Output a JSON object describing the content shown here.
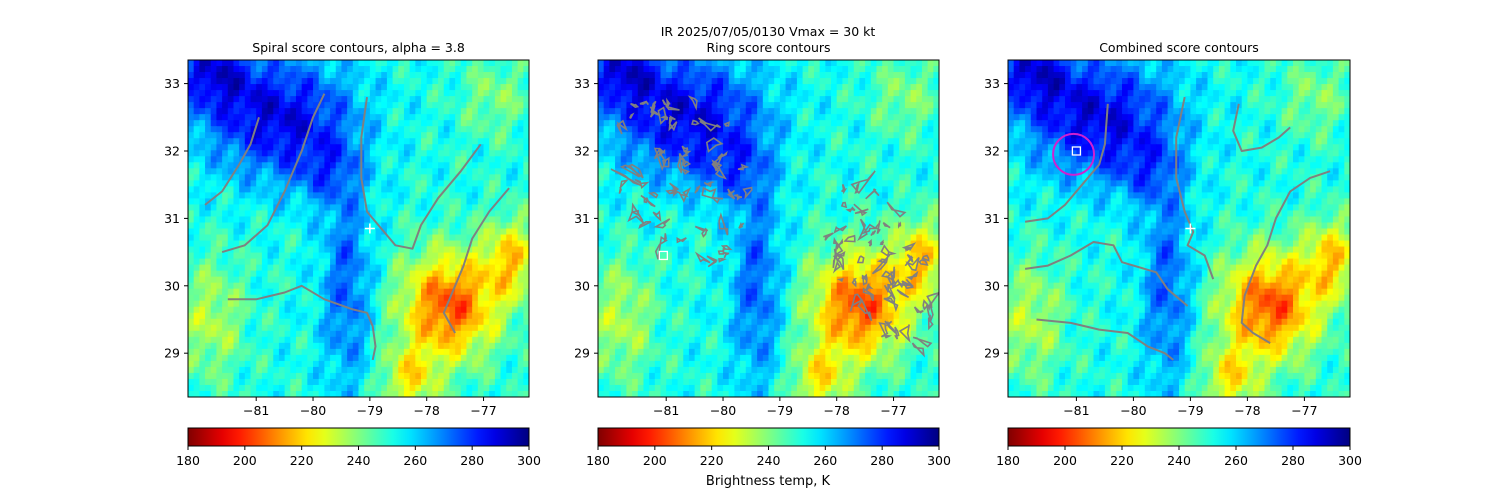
{
  "suptitle_line1": "IR  2025/07/05/0130    Vmax = 30 kt",
  "colorbar_label": "Brightness temp, K",
  "chart_data": [
    {
      "type": "heatmap",
      "title": "Spiral score contours, alpha =  3.8",
      "xlim": [
        -82.2,
        -76.2
      ],
      "ylim": [
        28.35,
        33.35
      ],
      "xticks": [
        -81,
        -80,
        -79,
        -78,
        -77
      ],
      "yticks": [
        29,
        30,
        31,
        32,
        33
      ],
      "overlay": "spiral",
      "contour_color": "#808080",
      "marker": {
        "type": "plus",
        "x": -79.0,
        "y": 30.85,
        "color": "#ffffff"
      },
      "contours": [
        [
          [
            -81.9,
            31.2
          ],
          [
            -81.6,
            31.4
          ],
          [
            -81.3,
            31.8
          ],
          [
            -81.1,
            32.1
          ],
          [
            -80.95,
            32.5
          ]
        ],
        [
          [
            -81.6,
            30.5
          ],
          [
            -81.2,
            30.6
          ],
          [
            -80.8,
            30.9
          ],
          [
            -80.5,
            31.4
          ],
          [
            -80.2,
            32.0
          ],
          [
            -80.0,
            32.5
          ],
          [
            -79.8,
            32.85
          ]
        ],
        [
          [
            -81.5,
            29.8
          ],
          [
            -81.0,
            29.8
          ],
          [
            -80.5,
            29.9
          ],
          [
            -80.2,
            30.0
          ],
          [
            -79.8,
            29.8
          ],
          [
            -79.3,
            29.65
          ],
          [
            -79.05,
            29.6
          ],
          [
            -78.95,
            29.4
          ],
          [
            -78.9,
            29.1
          ],
          [
            -78.95,
            28.9
          ]
        ],
        [
          [
            -79.05,
            32.8
          ],
          [
            -79.15,
            32.2
          ],
          [
            -79.15,
            31.6
          ],
          [
            -79.05,
            31.1
          ],
          [
            -78.75,
            30.8
          ],
          [
            -78.55,
            30.6
          ],
          [
            -78.25,
            30.55
          ],
          [
            -78.1,
            30.9
          ],
          [
            -77.8,
            31.3
          ],
          [
            -77.4,
            31.7
          ],
          [
            -77.05,
            32.1
          ]
        ],
        [
          [
            -76.55,
            31.45
          ],
          [
            -76.9,
            31.1
          ],
          [
            -77.2,
            30.7
          ],
          [
            -77.35,
            30.3
          ],
          [
            -77.55,
            29.9
          ],
          [
            -77.7,
            29.6
          ],
          [
            -77.5,
            29.3
          ]
        ]
      ]
    },
    {
      "type": "heatmap",
      "title": "Ring score contours",
      "xlim": [
        -82.2,
        -76.2
      ],
      "ylim": [
        28.35,
        33.35
      ],
      "xticks": [
        -81,
        -80,
        -79,
        -78,
        -77
      ],
      "yticks": [
        29,
        30,
        31,
        32,
        33
      ],
      "overlay": "ring",
      "contour_color": "#808080",
      "marker": {
        "type": "square",
        "x": -81.05,
        "y": 30.45,
        "color": "#ffffff"
      },
      "ring_regions": [
        {
          "cx": -80.6,
          "cy": 31.6,
          "rx": 1.15,
          "ry": 1.35,
          "rot": -25
        },
        {
          "cx": -77.2,
          "cy": 30.3,
          "rx": 0.75,
          "ry": 1.25,
          "rot": -25
        }
      ]
    },
    {
      "type": "heatmap",
      "title": "Combined score contours",
      "xlim": [
        -82.2,
        -76.2
      ],
      "ylim": [
        28.35,
        33.35
      ],
      "xticks": [
        -81,
        -80,
        -79,
        -78,
        -77
      ],
      "yticks": [
        29,
        30,
        31,
        32,
        33
      ],
      "overlay": "combined",
      "contour_color": "#808080",
      "marker": {
        "type": "plus",
        "x": -79.0,
        "y": 30.85,
        "color": "#ffffff"
      },
      "circle": {
        "x": -81.05,
        "y": 31.95,
        "r_deg": 0.36,
        "color": "#d020d0"
      },
      "square": {
        "x": -81.0,
        "y": 32.0,
        "color": "#ffffff"
      },
      "contours": [
        [
          [
            -81.9,
            30.95
          ],
          [
            -81.5,
            31.0
          ],
          [
            -81.2,
            31.2
          ],
          [
            -80.9,
            31.5
          ],
          [
            -80.6,
            31.8
          ],
          [
            -80.5,
            32.1
          ],
          [
            -80.45,
            32.7
          ]
        ],
        [
          [
            -81.9,
            30.25
          ],
          [
            -81.5,
            30.3
          ],
          [
            -81.1,
            30.45
          ],
          [
            -80.7,
            30.65
          ],
          [
            -80.35,
            30.6
          ],
          [
            -80.2,
            30.35
          ],
          [
            -79.8,
            30.25
          ],
          [
            -79.6,
            30.2
          ],
          [
            -79.4,
            29.95
          ],
          [
            -79.05,
            29.7
          ]
        ],
        [
          [
            -81.7,
            29.5
          ],
          [
            -81.1,
            29.45
          ],
          [
            -80.6,
            29.35
          ],
          [
            -80.1,
            29.3
          ],
          [
            -79.75,
            29.1
          ],
          [
            -79.45,
            29.0
          ],
          [
            -79.3,
            28.9
          ]
        ],
        [
          [
            -79.1,
            32.8
          ],
          [
            -79.25,
            32.2
          ],
          [
            -79.25,
            31.6
          ],
          [
            -79.1,
            31.1
          ],
          [
            -78.95,
            30.8
          ],
          [
            -79.05,
            30.6
          ],
          [
            -78.75,
            30.45
          ],
          [
            -78.6,
            30.1
          ]
        ],
        [
          [
            -78.15,
            32.7
          ],
          [
            -78.25,
            32.3
          ],
          [
            -78.1,
            32.0
          ],
          [
            -77.75,
            32.05
          ],
          [
            -77.45,
            32.2
          ],
          [
            -77.25,
            32.35
          ]
        ],
        [
          [
            -76.55,
            31.7
          ],
          [
            -76.9,
            31.6
          ],
          [
            -77.25,
            31.4
          ],
          [
            -77.5,
            31.0
          ],
          [
            -77.65,
            30.6
          ],
          [
            -77.85,
            30.3
          ],
          [
            -78.05,
            29.85
          ],
          [
            -78.1,
            29.45
          ],
          [
            -77.9,
            29.3
          ],
          [
            -77.6,
            29.15
          ]
        ]
      ]
    }
  ],
  "colorbar": {
    "min": 180,
    "max": 300,
    "ticks": [
      180,
      200,
      220,
      240,
      260,
      280,
      300
    ],
    "colormap": "jet_r"
  }
}
